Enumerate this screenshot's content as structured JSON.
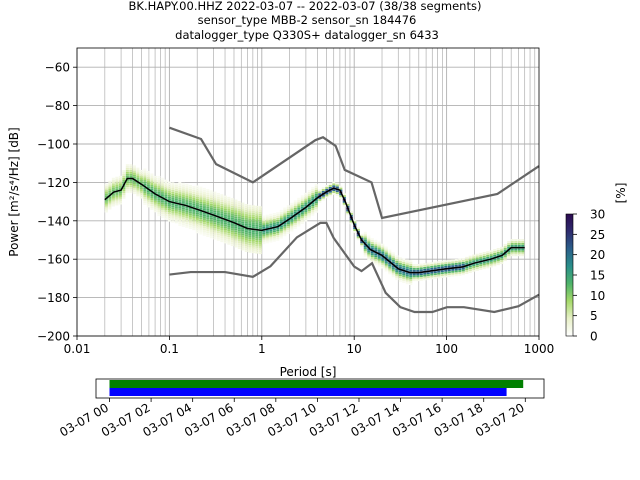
{
  "figure": {
    "title_line1": "BK.HAPY.00.HHZ   2022-03-07 -- 2022-03-07  (38/38 segments)",
    "title_line2": "sensor_type MBB-2 sensor_sn 184476",
    "title_line3": "datalogger_type Q330S+ datalogger_sn 6433"
  },
  "chart_data": [
    {
      "type": "heatmap",
      "xlabel": "Period [s]",
      "ylabel": "Power [m²/s⁴/Hz] [dB]",
      "x_scale": "log",
      "xlim": [
        0.01,
        1000
      ],
      "ylim": [
        -200,
        -50
      ],
      "x_ticks": [
        0.01,
        0.1,
        1,
        10,
        100,
        1000
      ],
      "x_tick_labels": [
        "0.01",
        "0.1",
        "1",
        "10",
        "100",
        "1000"
      ],
      "y_ticks": [
        -200,
        -180,
        -160,
        -140,
        -120,
        -100,
        -80,
        -60
      ],
      "y_tick_labels": [
        "−200",
        "−180",
        "−160",
        "−140",
        "−120",
        "−100",
        "−80",
        "−60"
      ],
      "grid": true,
      "colorbar": {
        "label": "[%]",
        "ticks": [
          0,
          5,
          10,
          15,
          20,
          25,
          30
        ],
        "tick_labels": [
          "0",
          "5",
          "10",
          "15",
          "20",
          "25",
          "30"
        ],
        "colors": [
          "#ffffff",
          "#e8f0c8",
          "#a6d96a",
          "#4fb36a",
          "#2a8f8a",
          "#2b5f8a",
          "#2e2c6e",
          "#2b0a4f"
        ]
      },
      "mode_curve": {
        "period": [
          0.02,
          0.025,
          0.03,
          0.035,
          0.04,
          0.05,
          0.07,
          0.1,
          0.15,
          0.2,
          0.3,
          0.5,
          0.7,
          1,
          1.5,
          2,
          3,
          4,
          5,
          6,
          7,
          8,
          10,
          12,
          15,
          20,
          30,
          40,
          50,
          70,
          100,
          150,
          200,
          300,
          400,
          500,
          700
        ],
        "power": [
          -129,
          -125,
          -124,
          -118,
          -118,
          -121,
          -126,
          -130,
          -132,
          -134,
          -137,
          -141,
          -144,
          -145,
          -143,
          -139,
          -133,
          -128,
          -125,
          -123,
          -124,
          -130,
          -142,
          -150,
          -155,
          -158,
          -165,
          -167,
          -167,
          -166,
          -165,
          -164,
          -162,
          -160,
          -158,
          -154,
          -154
        ]
      },
      "nhnm": {
        "period": [
          0.1,
          0.22,
          0.32,
          0.8,
          3.8,
          4.6,
          6.3,
          7.9,
          15.4,
          20,
          354.8,
          1000
        ],
        "power": [
          -91.5,
          -97.4,
          -110.5,
          -120,
          -98,
          -96.5,
          -101,
          -113.5,
          -120,
          -138.5,
          -126,
          -111.5
        ]
      },
      "nlnm": {
        "period": [
          0.1,
          0.17,
          0.4,
          0.8,
          1.24,
          2.4,
          4.3,
          5,
          6,
          10,
          12,
          15.6,
          21.9,
          31.6,
          45,
          70,
          101,
          154,
          328,
          600,
          1000
        ],
        "power": [
          -168,
          -166.7,
          -166.7,
          -169.2,
          -163.7,
          -148.6,
          -141.1,
          -141.1,
          -149,
          -163.8,
          -166.2,
          -162.1,
          -177.5,
          -185,
          -187.5,
          -187.5,
          -185,
          -185,
          -187.5,
          -184.5,
          -178.5
        ]
      }
    },
    {
      "type": "bar",
      "xlabel": "",
      "x_tick_labels": [
        "03-07 00",
        "03-07 02",
        "03-07 04",
        "03-07 06",
        "03-07 08",
        "03-07 10",
        "03-07 12",
        "03-07 14",
        "03-07 16",
        "03-07 18",
        "03-07 20"
      ],
      "xlim_hours": [
        -0.65,
        20.9
      ],
      "series": [
        {
          "color": "#008000",
          "start_hour": 0,
          "end_hour": 19.9
        },
        {
          "color": "#0000ff",
          "start_hour": 0,
          "end_hour": 19.1
        }
      ]
    }
  ]
}
